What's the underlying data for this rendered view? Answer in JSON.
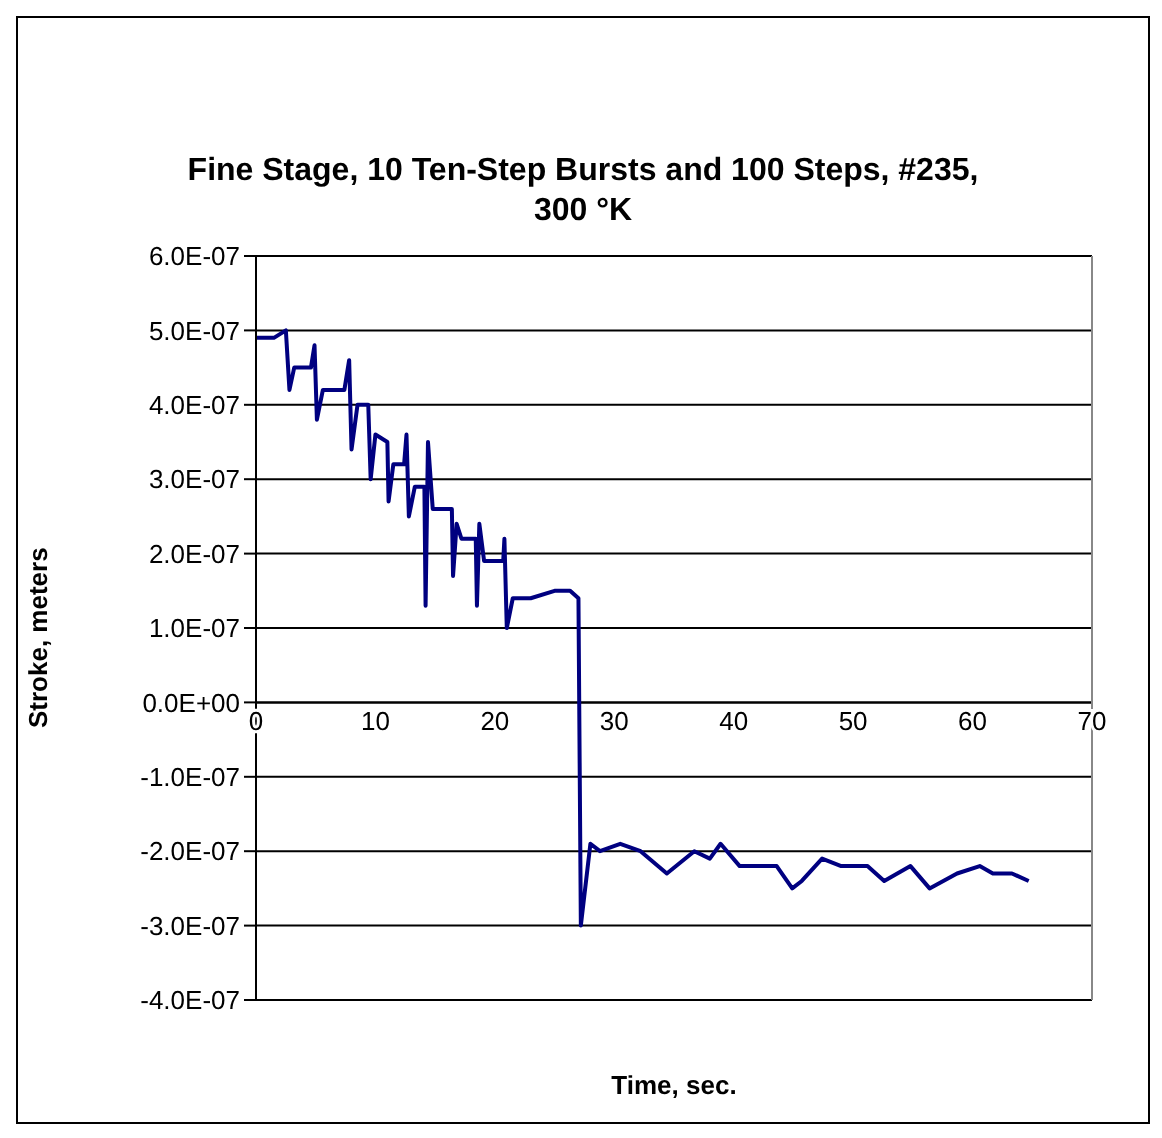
{
  "chart_data": {
    "type": "line",
    "title": "Fine Stage, 10 Ten-Step Bursts and 100 Steps, #235, 300 °K",
    "xlabel": "Time, sec.",
    "ylabel": "Stroke, meters",
    "x": [
      0,
      1.5,
      2.5,
      2.8,
      3.2,
      4.6,
      4.9,
      5.1,
      5.6,
      7.4,
      7.8,
      8.0,
      8.5,
      9.4,
      9.6,
      10.0,
      11.0,
      11.1,
      11.5,
      12.4,
      12.6,
      12.8,
      13.3,
      14.1,
      14.2,
      14.4,
      14.8,
      16.4,
      16.5,
      16.8,
      17.2,
      18.4,
      18.5,
      18.7,
      19.1,
      20.7,
      20.8,
      21.0,
      21.5,
      23.0,
      25.0,
      26.3,
      27.0,
      27.2,
      28.0,
      28.8,
      30.5,
      32.2,
      34.4,
      36.7,
      38.0,
      38.9,
      40.5,
      42.5,
      43.6,
      44.9,
      45.7,
      47.4,
      49.0,
      51.2,
      52.6,
      54.8,
      56.4,
      58.7,
      60.6,
      61.7,
      63.3,
      64.7
    ],
    "series": [
      {
        "color": "#000080",
        "values": [
          4.9e-07,
          4.9e-07,
          5e-07,
          4.2e-07,
          4.5e-07,
          4.5e-07,
          4.8e-07,
          3.8e-07,
          4.2e-07,
          4.2e-07,
          4.6e-07,
          3.4e-07,
          4e-07,
          4e-07,
          3e-07,
          3.6e-07,
          3.5e-07,
          2.7e-07,
          3.2e-07,
          3.2e-07,
          3.6e-07,
          2.5e-07,
          2.9e-07,
          2.9e-07,
          1.3e-07,
          3.5e-07,
          2.6e-07,
          2.6e-07,
          1.7e-07,
          2.4e-07,
          2.2e-07,
          2.2e-07,
          1.3e-07,
          2.4e-07,
          1.9e-07,
          1.9e-07,
          2.2e-07,
          1e-07,
          1.4e-07,
          1.4e-07,
          1.5e-07,
          1.5e-07,
          1.4e-07,
          -3e-07,
          -1.9e-07,
          -2e-07,
          -1.9e-07,
          -2e-07,
          -2.3e-07,
          -2e-07,
          -2.1e-07,
          -1.9e-07,
          -2.2e-07,
          -2.2e-07,
          -2.2e-07,
          -2.5e-07,
          -2.4e-07,
          -2.1e-07,
          -2.2e-07,
          -2.2e-07,
          -2.4e-07,
          -2.2e-07,
          -2.5e-07,
          -2.3e-07,
          -2.2e-07,
          -2.3e-07,
          -2.3e-07,
          -2.4e-07
        ]
      }
    ],
    "xlim": [
      0,
      70
    ],
    "xticks": [
      0,
      10,
      20,
      30,
      40,
      50,
      60,
      70
    ],
    "ylim": [
      -4e-07,
      6e-07
    ],
    "yticks": [
      {
        "value": -4e-07,
        "label": "-4.0E-07"
      },
      {
        "value": -3e-07,
        "label": "-3.0E-07"
      },
      {
        "value": -2e-07,
        "label": "-2.0E-07"
      },
      {
        "value": -1e-07,
        "label": "-1.0E-07"
      },
      {
        "value": 0,
        "label": "0.0E+00"
      },
      {
        "value": 1e-07,
        "label": "1.0E-07"
      },
      {
        "value": 2e-07,
        "label": "2.0E-07"
      },
      {
        "value": 3e-07,
        "label": "3.0E-07"
      },
      {
        "value": 4e-07,
        "label": "4.0E-07"
      },
      {
        "value": 5e-07,
        "label": "5.0E-07"
      },
      {
        "value": 6e-07,
        "label": "6.0E-07"
      }
    ],
    "grid": "y",
    "legend": false,
    "marker": "none",
    "line_style": "solid"
  }
}
